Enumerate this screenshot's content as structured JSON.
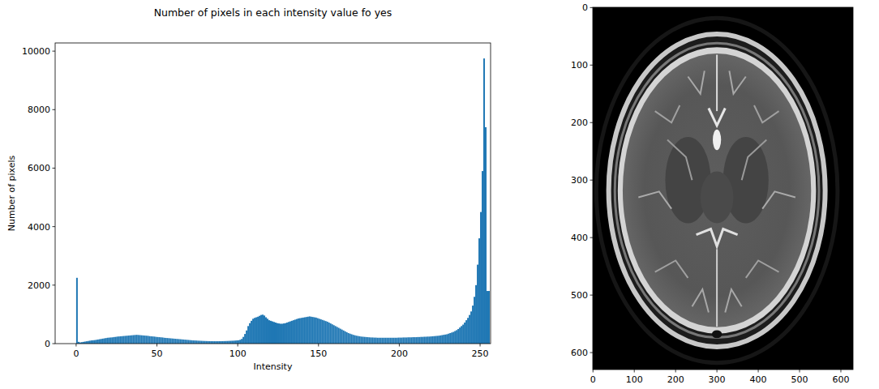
{
  "chart_data": [
    {
      "type": "histogram",
      "title": "Number of pixels in each intensity value fo yes",
      "x_label": "Intensity",
      "y_label": "Number of pixels",
      "color": "#1f77b4",
      "xlim": [
        -13,
        256.5
      ],
      "ylim": [
        0,
        10280
      ],
      "xticks": [
        0,
        50,
        100,
        150,
        200,
        250
      ],
      "yticks": [
        0,
        2000,
        4000,
        6000,
        8000,
        10000
      ],
      "bins": [
        0,
        1,
        2,
        3,
        4,
        5,
        6,
        7,
        8,
        9,
        10,
        11,
        12,
        13,
        14,
        15,
        16,
        17,
        18,
        19,
        20,
        21,
        22,
        23,
        24,
        25,
        26,
        27,
        28,
        29,
        30,
        31,
        32,
        33,
        34,
        35,
        36,
        37,
        38,
        39,
        40,
        41,
        42,
        43,
        44,
        45,
        46,
        47,
        48,
        49,
        50,
        51,
        52,
        53,
        54,
        55,
        56,
        57,
        58,
        59,
        60,
        61,
        62,
        63,
        64,
        65,
        66,
        67,
        68,
        69,
        70,
        71,
        72,
        73,
        74,
        75,
        76,
        77,
        78,
        79,
        80,
        81,
        82,
        83,
        84,
        85,
        86,
        87,
        88,
        89,
        90,
        91,
        92,
        93,
        94,
        95,
        96,
        97,
        98,
        99,
        100,
        101,
        102,
        103,
        104,
        105,
        106,
        107,
        108,
        109,
        110,
        111,
        112,
        113,
        114,
        115,
        116,
        117,
        118,
        119,
        120,
        121,
        122,
        123,
        124,
        125,
        126,
        127,
        128,
        129,
        130,
        131,
        132,
        133,
        134,
        135,
        136,
        137,
        138,
        139,
        140,
        141,
        142,
        143,
        144,
        145,
        146,
        147,
        148,
        149,
        150,
        151,
        152,
        153,
        154,
        155,
        156,
        157,
        158,
        159,
        160,
        161,
        162,
        163,
        164,
        165,
        166,
        167,
        168,
        169,
        170,
        171,
        172,
        173,
        174,
        175,
        176,
        177,
        178,
        179,
        180,
        181,
        182,
        183,
        184,
        185,
        186,
        187,
        188,
        189,
        190,
        191,
        192,
        193,
        194,
        195,
        196,
        197,
        198,
        199,
        200,
        201,
        202,
        203,
        204,
        205,
        206,
        207,
        208,
        209,
        210,
        211,
        212,
        213,
        214,
        215,
        216,
        217,
        218,
        219,
        220,
        221,
        222,
        223,
        224,
        225,
        226,
        227,
        228,
        229,
        230,
        231,
        232,
        233,
        234,
        235,
        236,
        237,
        238,
        239,
        240,
        241,
        242,
        243,
        244,
        245,
        246,
        247,
        248,
        249,
        250,
        251,
        252,
        253,
        254,
        255,
        256
      ],
      "values": [
        2250,
        60,
        40,
        50,
        60,
        70,
        80,
        90,
        100,
        110,
        115,
        120,
        130,
        140,
        150,
        160,
        170,
        180,
        190,
        200,
        205,
        210,
        215,
        225,
        230,
        240,
        245,
        250,
        255,
        260,
        265,
        270,
        275,
        280,
        285,
        290,
        295,
        300,
        295,
        290,
        285,
        280,
        275,
        270,
        265,
        255,
        250,
        245,
        240,
        230,
        225,
        220,
        215,
        210,
        200,
        195,
        190,
        185,
        180,
        175,
        170,
        165,
        160,
        155,
        150,
        145,
        140,
        135,
        130,
        125,
        120,
        115,
        110,
        108,
        105,
        100,
        98,
        95,
        92,
        90,
        88,
        86,
        85,
        84,
        83,
        82,
        82,
        82,
        83,
        84,
        85,
        86,
        88,
        90,
        92,
        95,
        98,
        100,
        105,
        110,
        115,
        130,
        160,
        230,
        330,
        450,
        600,
        700,
        780,
        850,
        880,
        900,
        920,
        950,
        980,
        990,
        960,
        900,
        850,
        800,
        780,
        760,
        740,
        720,
        700,
        690,
        680,
        680,
        690,
        700,
        720,
        740,
        760,
        780,
        800,
        820,
        840,
        860,
        870,
        880,
        890,
        900,
        910,
        920,
        930,
        920,
        910,
        900,
        890,
        870,
        850,
        830,
        810,
        790,
        770,
        750,
        720,
        690,
        660,
        630,
        600,
        570,
        540,
        510,
        480,
        450,
        420,
        390,
        360,
        340,
        320,
        300,
        285,
        270,
        260,
        250,
        240,
        235,
        230,
        225,
        220,
        215,
        210,
        210,
        205,
        205,
        200,
        200,
        200,
        200,
        200,
        200,
        200,
        200,
        200,
        200,
        200,
        200,
        200,
        205,
        205,
        205,
        210,
        210,
        210,
        215,
        215,
        215,
        220,
        220,
        220,
        225,
        225,
        230,
        230,
        235,
        235,
        240,
        240,
        245,
        250,
        255,
        260,
        265,
        270,
        280,
        290,
        300,
        310,
        320,
        340,
        360,
        380,
        400,
        430,
        460,
        500,
        550,
        600,
        650,
        720,
        800,
        880,
        980,
        1100,
        1300,
        1600,
        2000,
        2700,
        3600,
        4500,
        5900,
        9750,
        7400,
        1800,
        1800
      ]
    },
    {
      "type": "image",
      "xlim": [
        -0.5,
        629.5
      ],
      "ylim": [
        629.5,
        -0.5
      ],
      "xticks": [
        0,
        100,
        200,
        300,
        400,
        500,
        600
      ],
      "yticks": [
        0,
        100,
        200,
        300,
        400,
        500,
        600
      ]
    }
  ]
}
